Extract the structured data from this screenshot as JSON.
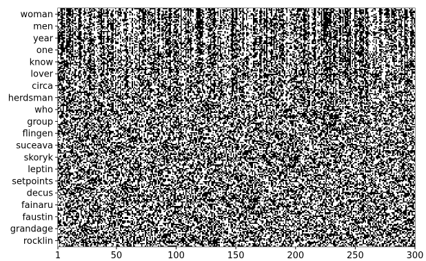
{
  "chart_data": {
    "type": "heatmap",
    "title": "",
    "xlabel": "",
    "ylabel": "",
    "xlim": [
      1,
      300
    ],
    "x_ticks": [
      1,
      50,
      100,
      150,
      200,
      250,
      300
    ],
    "y_tick_labels": [
      "woman",
      "men",
      "year",
      "one",
      "know",
      "lover",
      "circa",
      "herdsman",
      "who",
      "group",
      "flingen",
      "suceava",
      "skoryk",
      "leptin",
      "setpoints",
      "decus",
      "fainaru",
      "faustin",
      "grandage",
      "rocklin"
    ],
    "dimensions": 300,
    "rows": 200,
    "values": "binary",
    "colors": {
      "on": "#000000",
      "off": "#ffffff"
    },
    "note_structure": "top rows (frequent words) show vertical column stripes; bottom rows (rare words) look random"
  }
}
